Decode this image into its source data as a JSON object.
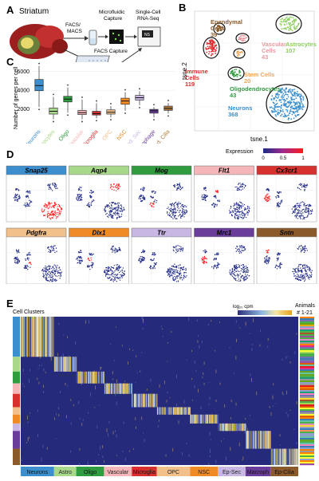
{
  "panel_a": {
    "letter": "A",
    "tissue": "Striatum",
    "sort_label_1": "FACS/",
    "sort_label_2": "MACS",
    "capture_label_1": "Microfluidic",
    "capture_label_2": "Capture",
    "seq_label_1": "Single-Cell",
    "seq_label_2": "RNA-Seq",
    "facs_capture_label": "FACS Capture"
  },
  "panel_b": {
    "letter": "B",
    "xlabel": "tsne.1",
    "ylabel": "tsne.2",
    "clusters": [
      {
        "name": "Ependymal",
        "name2": "Cells",
        "count": "39",
        "color": "#8b5a2b"
      },
      {
        "name": "Astrocytes",
        "name2": "",
        "count": "107",
        "color": "#8fcf5f"
      },
      {
        "name": "Vascular",
        "name2": "Cells",
        "count": "43",
        "color": "#e89aa0"
      },
      {
        "name": "Stem Cells",
        "name2": "",
        "count": "20",
        "color": "#f2a65a"
      },
      {
        "name": "Immune",
        "name2": "Cells",
        "count": "119",
        "color": "#d7302f"
      },
      {
        "name": "Oligodendrocytes",
        "name2": "",
        "count": "43",
        "color": "#2e9c3f"
      },
      {
        "name": "Neurons",
        "name2": "",
        "count": "368",
        "color": "#3b8fce"
      }
    ]
  },
  "panel_c": {
    "letter": "C",
    "ylabel": "Number of genes per cell",
    "chart_data": {
      "type": "box",
      "ylim": [
        0,
        7000
      ],
      "yticks": [
        2000,
        4000,
        6000
      ],
      "categories": [
        "Neurons",
        "Astrocytes",
        "Oligo",
        "Vascular",
        "Microglia",
        "OPC",
        "NSC",
        "Epend. Sec",
        "Macrophage",
        "Epend. Cilia"
      ],
      "colors": [
        "#3b8fce",
        "#a8d88a",
        "#2e9c3f",
        "#f4b6b9",
        "#d7302f",
        "#f2c08a",
        "#f08a24",
        "#c9b7e3",
        "#6a3d9a",
        "#b07a3c"
      ],
      "box": [
        {
          "min": 2200,
          "q1": 3950,
          "median": 4500,
          "q3": 5150,
          "max": 6600
        },
        {
          "min": 900,
          "q1": 1450,
          "median": 1750,
          "q3": 2100,
          "max": 3300
        },
        {
          "min": 1600,
          "q1": 2750,
          "median": 3050,
          "q3": 3350,
          "max": 4300
        },
        {
          "min": 900,
          "q1": 1400,
          "median": 1600,
          "q3": 1850,
          "max": 3000
        },
        {
          "min": 1000,
          "q1": 1350,
          "median": 1500,
          "q3": 1750,
          "max": 2600
        },
        {
          "min": 1100,
          "q1": 1450,
          "median": 1650,
          "q3": 1900,
          "max": 2300
        },
        {
          "min": 1800,
          "q1": 2500,
          "median": 2850,
          "q3": 3150,
          "max": 3800
        },
        {
          "min": 2400,
          "q1": 2950,
          "median": 3200,
          "q3": 3450,
          "max": 3900
        },
        {
          "min": 1100,
          "q1": 1550,
          "median": 1800,
          "q3": 1950,
          "max": 2200
        },
        {
          "min": 1500,
          "q1": 1850,
          "median": 2050,
          "q3": 2300,
          "max": 2650
        }
      ]
    }
  },
  "panel_d": {
    "letter": "D",
    "legend_title": "Expression",
    "legend_ticks": [
      "0",
      "0.5",
      "1"
    ],
    "genes": [
      {
        "name": "Snap25",
        "color": "#3b8fce",
        "hot": "neurons"
      },
      {
        "name": "Aqp4",
        "color": "#a8d88a",
        "hot": "astro"
      },
      {
        "name": "Mog",
        "color": "#2e9c3f",
        "hot": "oligo"
      },
      {
        "name": "Flt1",
        "color": "#f4b6b9",
        "hot": "vascular"
      },
      {
        "name": "Cx3cr1",
        "color": "#d7302f",
        "hot": "immune"
      },
      {
        "name": "Pdgfra",
        "color": "#f2c08a",
        "hot": "opc"
      },
      {
        "name": "Dlx1",
        "color": "#f08a24",
        "hot": "stem"
      },
      {
        "name": "Ttr",
        "color": "#c9b7e3",
        "hot": "none"
      },
      {
        "name": "Mrc1",
        "color": "#6a3d9a",
        "hot": "immune"
      },
      {
        "name": "Sntn",
        "color": "#8b5a2b",
        "hot": "ependymal"
      }
    ]
  },
  "panel_e": {
    "letter": "E",
    "cell_clusters_label": "Cell Clusters",
    "scale_label": "log₁₀ cpm",
    "scale_ticks": [
      "0",
      "2.3",
      "4.6"
    ],
    "animals_label_1": "Animals",
    "animals_label_2": "# 1-21",
    "clusters": [
      {
        "name": "Neurons",
        "color": "#3b8fce"
      },
      {
        "name": "Astro",
        "color": "#a8d88a"
      },
      {
        "name": "Oligo",
        "color": "#2e9c3f"
      },
      {
        "name": "Vascular",
        "color": "#f4b6b9"
      },
      {
        "name": "Microglia",
        "color": "#d7302f"
      },
      {
        "name": "OPC",
        "color": "#f2c08a"
      },
      {
        "name": "NSC",
        "color": "#f08a24"
      },
      {
        "name": "Ep-Sec",
        "color": "#c9b7e3"
      },
      {
        "name": "Macroph",
        "color": "#6a3d9a"
      },
      {
        "name": "Ep-Cilia",
        "color": "#8b5a2b"
      }
    ]
  }
}
